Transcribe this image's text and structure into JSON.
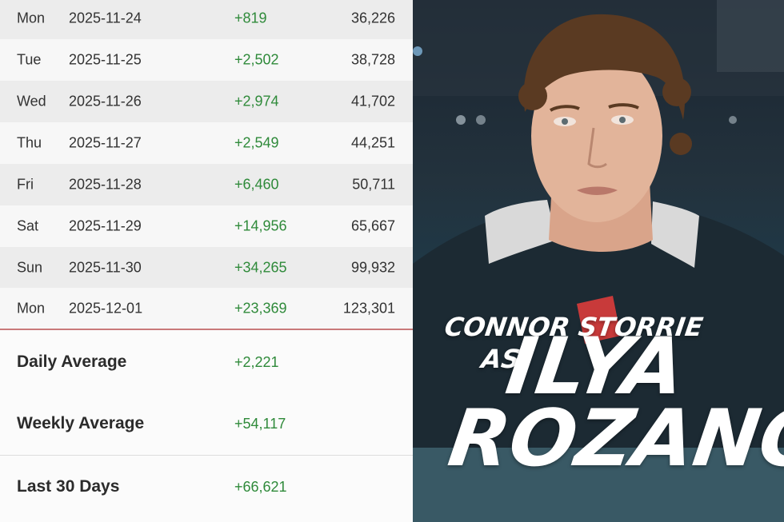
{
  "table": {
    "rows": [
      {
        "day": "Mon",
        "date": "2025-11-24",
        "change": "+819",
        "total": "36,226"
      },
      {
        "day": "Tue",
        "date": "2025-11-25",
        "change": "+2,502",
        "total": "38,728"
      },
      {
        "day": "Wed",
        "date": "2025-11-26",
        "change": "+2,974",
        "total": "41,702"
      },
      {
        "day": "Thu",
        "date": "2025-11-27",
        "change": "+2,549",
        "total": "44,251"
      },
      {
        "day": "Fri",
        "date": "2025-11-28",
        "change": "+6,460",
        "total": "50,711"
      },
      {
        "day": "Sat",
        "date": "2025-11-29",
        "change": "+14,956",
        "total": "65,667"
      },
      {
        "day": "Sun",
        "date": "2025-11-30",
        "change": "+34,265",
        "total": "99,932"
      },
      {
        "day": "Mon",
        "date": "2025-12-01",
        "change": "+23,369",
        "total": "123,301"
      }
    ]
  },
  "summary": {
    "daily": {
      "label": "Daily Average",
      "value": "+2,221"
    },
    "weekly": {
      "label": "Weekly Average",
      "value": "+54,117"
    },
    "last30": {
      "label": "Last 30 Days",
      "value": "+66,621"
    }
  },
  "poster": {
    "actor": "CONNOR STORRIE",
    "as": "AS",
    "first": "ILYA",
    "last": "ROZANOV"
  },
  "colors": {
    "positive": "#2f8a3a",
    "row_shade": "#ececec",
    "divider": "#c9797a"
  }
}
